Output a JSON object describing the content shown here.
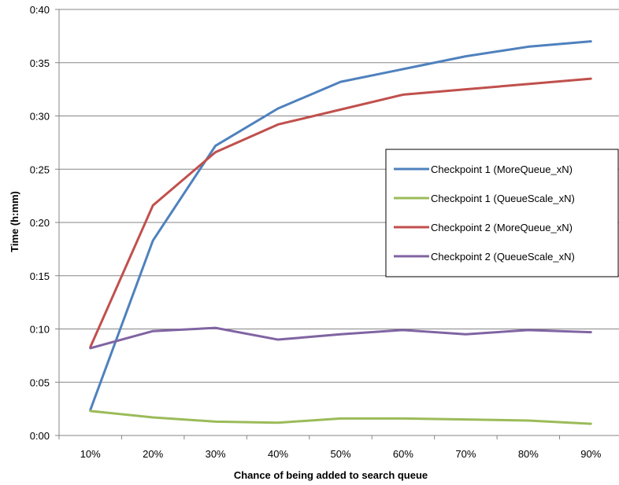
{
  "chart_data": {
    "type": "line",
    "title": "",
    "xlabel": "Chance of being added to search queue",
    "ylabel": "Time (h:mm)",
    "categories": [
      "10%",
      "20%",
      "30%",
      "40%",
      "50%",
      "60%",
      "70%",
      "80%",
      "90%"
    ],
    "y_tick_labels": [
      "0:00",
      "0:05",
      "0:10",
      "0:15",
      "0:20",
      "0:25",
      "0:30",
      "0:35",
      "0:40"
    ],
    "ylim_minutes": [
      0,
      40
    ],
    "y_unit": "minutes",
    "grid": "horizontal",
    "legend_position": "right",
    "series": [
      {
        "name": "Checkpoint 1 (MoreQueue_xN)",
        "color": "#4F81BD",
        "values": [
          2.4,
          18.3,
          27.2,
          30.7,
          33.2,
          34.4,
          35.6,
          36.5,
          37.0
        ]
      },
      {
        "name": "Checkpoint 1 (QueueScale_xN)",
        "color": "#9BBB59",
        "values": [
          2.3,
          1.7,
          1.3,
          1.2,
          1.6,
          1.6,
          1.5,
          1.4,
          1.1
        ]
      },
      {
        "name": "Checkpoint 2 (MoreQueue_xN)",
        "color": "#C0504D",
        "values": [
          8.3,
          21.6,
          26.6,
          29.2,
          30.6,
          32.0,
          32.5,
          33.0,
          33.5
        ]
      },
      {
        "name": "Checkpoint 2 (QueueScale_xN)",
        "color": "#8064A2",
        "values": [
          8.2,
          9.8,
          10.1,
          9.0,
          9.5,
          9.9,
          9.5,
          9.9,
          9.7
        ]
      }
    ]
  }
}
